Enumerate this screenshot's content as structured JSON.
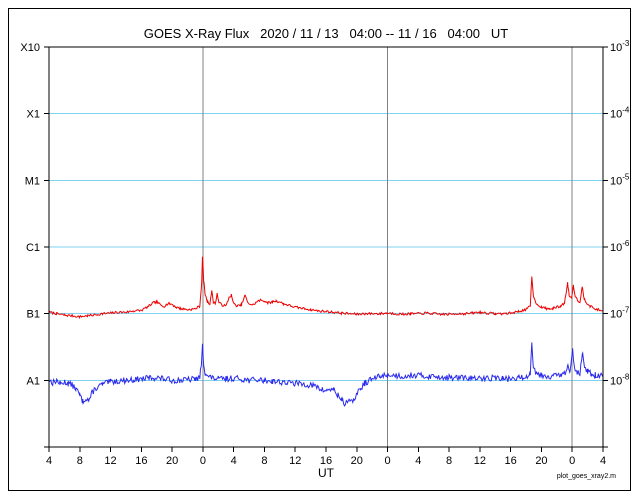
{
  "chart_data": {
    "type": "line",
    "title": "GOES X-Ray Flux   2020 / 11 / 13   04:00 -- 11 / 16   04:00   UT",
    "xlabel": "UT",
    "annotation": "plot_goes_xray2.m",
    "x_unit": "hours since 2020-11-13 04:00 UT",
    "x_range_hours": [
      0,
      72
    ],
    "x_tick_hours": [
      0,
      4,
      8,
      12,
      16,
      20,
      24,
      28,
      32,
      36,
      40,
      44,
      48,
      52,
      56,
      60,
      64,
      68,
      72
    ],
    "x_tick_labels": [
      "4",
      "8",
      "12",
      "16",
      "20",
      "0",
      "4",
      "8",
      "12",
      "16",
      "20",
      "0",
      "4",
      "8",
      "12",
      "16",
      "20",
      "0",
      "4"
    ],
    "y_scale": "log",
    "y_unit": "W m^-2",
    "y_range": [
      1e-09,
      0.001
    ],
    "left_labels": [
      [
        "X10",
        -3
      ],
      [
        "X1",
        -4
      ],
      [
        "M1",
        -5
      ],
      [
        "C1",
        -6
      ],
      [
        "B1",
        -7
      ],
      [
        "A1",
        -8
      ]
    ],
    "right_labels": [
      -3,
      -4,
      -5,
      -6,
      -7,
      -8
    ],
    "h_gridline_exponents": [
      -4,
      -5,
      -6,
      -7,
      -8
    ],
    "v_gridline_hours": [
      20,
      44,
      68
    ],
    "grid": true,
    "legend_position": "none",
    "colors": {
      "long": "#ee0000",
      "short": "#2a2aee",
      "grid_h": "#7fd2f0",
      "grid_v": "#808080",
      "axis": "#000000"
    },
    "series": [
      {
        "name": "xray-long-series",
        "color_key": "long",
        "noise_decades": 0.018,
        "seed": 7,
        "points": [
          [
            0,
            1.05e-07
          ],
          [
            1,
            1e-07
          ],
          [
            2,
            9.5e-08
          ],
          [
            3,
            9.3e-08
          ],
          [
            4,
            9e-08
          ],
          [
            5,
            9.3e-08
          ],
          [
            6,
            9.6e-08
          ],
          [
            7,
            1e-07
          ],
          [
            8,
            1.02e-07
          ],
          [
            9,
            1.05e-07
          ],
          [
            10,
            1.05e-07
          ],
          [
            11,
            1.1e-07
          ],
          [
            12,
            1.12e-07
          ],
          [
            13,
            1.3e-07
          ],
          [
            13.5,
            1.45e-07
          ],
          [
            14,
            1.5e-07
          ],
          [
            14.5,
            1.35e-07
          ],
          [
            15,
            1.3e-07
          ],
          [
            15.5,
            1.42e-07
          ],
          [
            16,
            1.38e-07
          ],
          [
            16.5,
            1.25e-07
          ],
          [
            17,
            1.2e-07
          ],
          [
            18,
            1.15e-07
          ],
          [
            19,
            1.18e-07
          ],
          [
            19.6,
            1.3e-07
          ],
          [
            19.85,
            3e-07
          ],
          [
            19.95,
            7.2e-07
          ],
          [
            20.1,
            3.2e-07
          ],
          [
            20.3,
            1.9e-07
          ],
          [
            20.6,
            1.5e-07
          ],
          [
            20.9,
            1.4e-07
          ],
          [
            21.15,
            2.2e-07
          ],
          [
            21.35,
            1.5e-07
          ],
          [
            21.6,
            1.4e-07
          ],
          [
            21.85,
            2e-07
          ],
          [
            22.1,
            1.45e-07
          ],
          [
            22.5,
            1.35e-07
          ],
          [
            23,
            1.3e-07
          ],
          [
            23.4,
            1.75e-07
          ],
          [
            23.7,
            1.9e-07
          ],
          [
            24,
            1.4e-07
          ],
          [
            24.5,
            1.3e-07
          ],
          [
            25,
            1.35e-07
          ],
          [
            25.5,
            1.9e-07
          ],
          [
            25.8,
            1.45e-07
          ],
          [
            26.5,
            1.35e-07
          ],
          [
            27,
            1.5e-07
          ],
          [
            27.5,
            1.6e-07
          ],
          [
            28,
            1.55e-07
          ],
          [
            28.5,
            1.45e-07
          ],
          [
            29,
            1.5e-07
          ],
          [
            29.5,
            1.55e-07
          ],
          [
            30,
            1.5e-07
          ],
          [
            30.5,
            1.4e-07
          ],
          [
            31,
            1.35e-07
          ],
          [
            32,
            1.25e-07
          ],
          [
            33,
            1.2e-07
          ],
          [
            34,
            1.15e-07
          ],
          [
            35,
            1.1e-07
          ],
          [
            36,
            1.08e-07
          ],
          [
            37,
            1.05e-07
          ],
          [
            38,
            1.02e-07
          ],
          [
            39,
            1e-07
          ],
          [
            40,
            9.8e-08
          ],
          [
            41,
            1e-07
          ],
          [
            42,
            1e-07
          ],
          [
            43,
            1e-07
          ],
          [
            44,
            1.02e-07
          ],
          [
            45,
            1e-07
          ],
          [
            46,
            9.8e-08
          ],
          [
            47,
            1e-07
          ],
          [
            48,
            1e-07
          ],
          [
            49,
            1.02e-07
          ],
          [
            50,
            1e-07
          ],
          [
            51,
            9.8e-08
          ],
          [
            52,
            9.8e-08
          ],
          [
            53,
            1e-07
          ],
          [
            54,
            1e-07
          ],
          [
            55,
            1.02e-07
          ],
          [
            56,
            1.05e-07
          ],
          [
            57,
            1.02e-07
          ],
          [
            58,
            1e-07
          ],
          [
            59,
            1e-07
          ],
          [
            60,
            1.02e-07
          ],
          [
            61,
            1.08e-07
          ],
          [
            62,
            1.15e-07
          ],
          [
            62.55,
            1.3e-07
          ],
          [
            62.75,
            3.6e-07
          ],
          [
            62.95,
            1.9e-07
          ],
          [
            63.2,
            1.5e-07
          ],
          [
            63.6,
            1.35e-07
          ],
          [
            64,
            1.25e-07
          ],
          [
            64.5,
            1.2e-07
          ],
          [
            65,
            1.18e-07
          ],
          [
            65.5,
            1.2e-07
          ],
          [
            66,
            1.25e-07
          ],
          [
            66.5,
            1.3e-07
          ],
          [
            67,
            1.45e-07
          ],
          [
            67.4,
            2.9e-07
          ],
          [
            67.6,
            1.9e-07
          ],
          [
            67.9,
            1.7e-07
          ],
          [
            68.15,
            2.7e-07
          ],
          [
            68.4,
            1.8e-07
          ],
          [
            68.7,
            1.6e-07
          ],
          [
            69,
            1.5e-07
          ],
          [
            69.3,
            2.5e-07
          ],
          [
            69.55,
            1.7e-07
          ],
          [
            69.9,
            1.45e-07
          ],
          [
            70.3,
            1.3e-07
          ],
          [
            70.8,
            1.2e-07
          ],
          [
            71.3,
            1.15e-07
          ],
          [
            72,
            1.1e-07
          ]
        ]
      },
      {
        "name": "xray-short-series",
        "color_key": "short",
        "noise_decades": 0.045,
        "seed": 13,
        "points": [
          [
            0,
            1e-08
          ],
          [
            0.5,
            9.2e-09
          ],
          [
            1,
            1e-08
          ],
          [
            1.5,
            8.8e-09
          ],
          [
            2,
            9.5e-09
          ],
          [
            2.5,
            9e-09
          ],
          [
            3,
            8.5e-09
          ],
          [
            3.5,
            7.5e-09
          ],
          [
            4,
            6e-09
          ],
          [
            4.4,
            4.8e-09
          ],
          [
            4.8,
            5.5e-09
          ],
          [
            5.2,
            5e-09
          ],
          [
            5.6,
            6.5e-09
          ],
          [
            6,
            7.5e-09
          ],
          [
            7,
            8.8e-09
          ],
          [
            8,
            9.5e-09
          ],
          [
            9,
            9.8e-09
          ],
          [
            10,
            1e-08
          ],
          [
            11,
            1.02e-08
          ],
          [
            12,
            1.05e-08
          ],
          [
            13,
            1.08e-08
          ],
          [
            14,
            1.1e-08
          ],
          [
            15,
            1.05e-08
          ],
          [
            16,
            1e-08
          ],
          [
            17,
            1e-08
          ],
          [
            18,
            1.02e-08
          ],
          [
            19,
            1.05e-08
          ],
          [
            19.6,
            1.1e-08
          ],
          [
            19.85,
            2e-08
          ],
          [
            19.95,
            3.3e-08
          ],
          [
            20.1,
            1.8e-08
          ],
          [
            20.3,
            1.3e-08
          ],
          [
            20.6,
            1.15e-08
          ],
          [
            21,
            1.1e-08
          ],
          [
            22,
            1.05e-08
          ],
          [
            23,
            1.05e-08
          ],
          [
            24,
            1.08e-08
          ],
          [
            25,
            1.05e-08
          ],
          [
            26,
            1e-08
          ],
          [
            27,
            1.02e-08
          ],
          [
            28,
            1e-08
          ],
          [
            29,
            9.8e-09
          ],
          [
            30,
            9.5e-09
          ],
          [
            31,
            9.2e-09
          ],
          [
            32,
            9e-09
          ],
          [
            33,
            8.8e-09
          ],
          [
            34,
            8.5e-09
          ],
          [
            35,
            7.8e-09
          ],
          [
            35.5,
            7.2e-09
          ],
          [
            36,
            7e-09
          ],
          [
            36.5,
            7.4e-09
          ],
          [
            37,
            7.2e-09
          ],
          [
            37.5,
            6e-09
          ],
          [
            38,
            5.2e-09
          ],
          [
            38.4,
            4.4e-09
          ],
          [
            38.8,
            5e-09
          ],
          [
            39.2,
            4.6e-09
          ],
          [
            39.6,
            5.2e-09
          ],
          [
            40,
            6.2e-09
          ],
          [
            40.5,
            7.5e-09
          ],
          [
            41,
            9e-09
          ],
          [
            42,
            1.05e-08
          ],
          [
            43,
            1.15e-08
          ],
          [
            44,
            1.2e-08
          ],
          [
            45,
            1.18e-08
          ],
          [
            46,
            1.15e-08
          ],
          [
            47,
            1.2e-08
          ],
          [
            48,
            1.18e-08
          ],
          [
            49,
            1.15e-08
          ],
          [
            50,
            1.15e-08
          ],
          [
            51,
            1.12e-08
          ],
          [
            52,
            1.1e-08
          ],
          [
            53,
            1.1e-08
          ],
          [
            54,
            1.08e-08
          ],
          [
            55,
            1.08e-08
          ],
          [
            56,
            1.05e-08
          ],
          [
            57,
            1.08e-08
          ],
          [
            58,
            1.1e-08
          ],
          [
            59,
            1.05e-08
          ],
          [
            60,
            1.05e-08
          ],
          [
            61,
            1.08e-08
          ],
          [
            62,
            1.12e-08
          ],
          [
            62.55,
            1.3e-08
          ],
          [
            62.75,
            3.5e-08
          ],
          [
            62.95,
            1.7e-08
          ],
          [
            63.3,
            1.3e-08
          ],
          [
            64,
            1.2e-08
          ],
          [
            65,
            1.15e-08
          ],
          [
            66,
            1.18e-08
          ],
          [
            66.5,
            1.2e-08
          ],
          [
            67,
            1.25e-08
          ],
          [
            67.4,
            1.6e-08
          ],
          [
            67.7,
            1.3e-08
          ],
          [
            68.05,
            2.9e-08
          ],
          [
            68.3,
            1.6e-08
          ],
          [
            68.6,
            1.35e-08
          ],
          [
            69,
            1.3e-08
          ],
          [
            69.3,
            2.6e-08
          ],
          [
            69.6,
            1.5e-08
          ],
          [
            70,
            1.35e-08
          ],
          [
            70.5,
            1.25e-08
          ],
          [
            71,
            1.2e-08
          ],
          [
            72,
            1.15e-08
          ]
        ]
      }
    ]
  }
}
